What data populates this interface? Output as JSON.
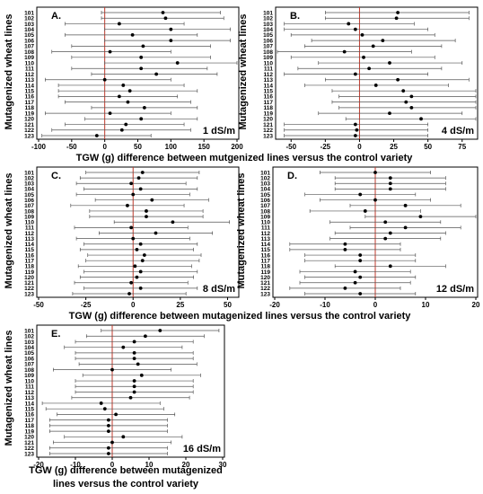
{
  "figure": {
    "y_axis_label": "Mutagenized wheat lines",
    "x_axis_label_top": "TGW (g) difference between mutgenized lines versus the control variety",
    "x_axis_label_middle": "TGW (g) difference between mutagenized lines versus the control variety",
    "x_axis_label_bottom_line1": "TGW (g) difference between mutagenized",
    "x_axis_label_bottom_line2": "lines versus the control variety"
  },
  "colors": {
    "zero_line": "#c0392b",
    "errorbar": "#555555",
    "point": "#000000",
    "frame": "#000000"
  },
  "chart_data": [
    {
      "type": "scatter",
      "panel": "A.",
      "condition": "1 dS/m",
      "categories": [
        "101",
        "102",
        "103",
        "104",
        "105",
        "106",
        "107",
        "108",
        "109",
        "110",
        "111",
        "112",
        "113",
        "114",
        "115",
        "116",
        "117",
        "118",
        "119",
        "120",
        "121",
        "122",
        "123"
      ],
      "xticks": [
        -100,
        -50,
        0,
        50,
        100,
        150,
        200
      ],
      "xlim": [
        -100,
        200
      ],
      "means": [
        88,
        92,
        22,
        100,
        42,
        100,
        58,
        8,
        55,
        110,
        55,
        78,
        0,
        28,
        38,
        22,
        35,
        60,
        8,
        55,
        32,
        26,
        -12
      ],
      "ci_low": [
        -5,
        -5,
        -60,
        0,
        -60,
        0,
        -50,
        -80,
        -50,
        0,
        -50,
        -20,
        -90,
        -70,
        -70,
        -70,
        -60,
        -20,
        -90,
        -30,
        -60,
        -80,
        -95
      ],
      "ci_high": [
        175,
        180,
        120,
        190,
        140,
        190,
        160,
        100,
        160,
        200,
        155,
        170,
        100,
        120,
        140,
        110,
        130,
        140,
        100,
        140,
        120,
        130,
        70
      ]
    },
    {
      "type": "scatter",
      "panel": "B.",
      "condition": "4 dS/m",
      "categories": [
        "101",
        "102",
        "103",
        "104",
        "105",
        "106",
        "107",
        "108",
        "109",
        "110",
        "111",
        "112",
        "113",
        "114",
        "115",
        "116",
        "117",
        "118",
        "119",
        "120",
        "121",
        "122",
        "123"
      ],
      "xticks": [
        -50,
        -25,
        0,
        25,
        50,
        75
      ],
      "xlim": [
        -60,
        85
      ],
      "means": [
        28,
        27,
        -8,
        -3,
        2,
        17,
        10,
        -11,
        3,
        22,
        7,
        -3,
        28,
        12,
        32,
        38,
        34,
        38,
        22,
        45,
        -3,
        -2,
        -3
      ],
      "ci_low": [
        -25,
        -25,
        -55,
        -55,
        -50,
        -35,
        -40,
        -60,
        -50,
        -30,
        -45,
        -55,
        -25,
        -40,
        -20,
        -15,
        -20,
        -15,
        -30,
        -10,
        -55,
        -55,
        -55
      ],
      "ci_high": [
        80,
        80,
        40,
        50,
        55,
        70,
        60,
        38,
        55,
        75,
        60,
        50,
        80,
        65,
        85,
        90,
        88,
        90,
        75,
        95,
        50,
        50,
        50
      ]
    },
    {
      "type": "scatter",
      "panel": "C.",
      "condition": "8 dS/m",
      "categories": [
        "101",
        "102",
        "103",
        "104",
        "105",
        "106",
        "107",
        "108",
        "109",
        "110",
        "111",
        "112",
        "113",
        "114",
        "115",
        "116",
        "117",
        "118",
        "119",
        "120",
        "121",
        "122",
        "123"
      ],
      "xticks": [
        -50,
        -25,
        0,
        25,
        50
      ],
      "xlim": [
        -50,
        55
      ],
      "means": [
        5,
        3,
        -1,
        4,
        0,
        10,
        -3,
        7,
        7,
        21,
        -1,
        12,
        0,
        4,
        2,
        6,
        5,
        1,
        4,
        2,
        -1,
        4,
        -2
      ],
      "ci_low": [
        -25,
        -28,
        -30,
        -26,
        -30,
        -20,
        -33,
        -23,
        -23,
        -10,
        -31,
        -18,
        -30,
        -26,
        -28,
        -24,
        -25,
        -29,
        -26,
        -28,
        -31,
        -26,
        -32
      ],
      "ci_high": [
        35,
        34,
        28,
        34,
        30,
        40,
        27,
        37,
        37,
        51,
        29,
        42,
        30,
        34,
        32,
        36,
        35,
        31,
        34,
        32,
        29,
        34,
        28
      ]
    },
    {
      "type": "scatter",
      "panel": "D.",
      "condition": "12 dS/m",
      "categories": [
        "101",
        "102",
        "103",
        "104",
        "105",
        "106",
        "107",
        "108",
        "109",
        "110",
        "111",
        "112",
        "113",
        "114",
        "115",
        "116",
        "117",
        "118",
        "119",
        "120",
        "121",
        "122",
        "123"
      ],
      "xticks": [
        -20,
        -10,
        0,
        10,
        20
      ],
      "xlim": [
        -20,
        20
      ],
      "means": [
        0,
        3,
        3,
        3,
        -3,
        0,
        6,
        -2,
        9,
        2,
        6,
        3,
        2,
        -6,
        -6,
        -3,
        -3,
        3,
        -4,
        -3,
        -4,
        -6,
        -3
      ],
      "ci_low": [
        -11,
        -8,
        -8,
        -8,
        -14,
        -11,
        -5,
        -13,
        -2,
        -9,
        -5,
        -8,
        -9,
        -17,
        -17,
        -14,
        -14,
        -8,
        -15,
        -14,
        -15,
        -17,
        -14
      ],
      "ci_high": [
        11,
        14,
        14,
        14,
        8,
        11,
        17,
        9,
        20,
        13,
        17,
        14,
        13,
        5,
        5,
        8,
        8,
        14,
        7,
        8,
        7,
        5,
        8
      ]
    },
    {
      "type": "scatter",
      "panel": "E.",
      "condition": "16 dS/m",
      "categories": [
        "101",
        "102",
        "103",
        "104",
        "105",
        "106",
        "107",
        "108",
        "109",
        "110",
        "111",
        "112",
        "113",
        "114",
        "115",
        "116",
        "117",
        "118",
        "119",
        "120",
        "121",
        "122",
        "123"
      ],
      "xticks": [
        -20,
        -10,
        0,
        10,
        20,
        30
      ],
      "xlim": [
        -20,
        30
      ],
      "means": [
        13,
        9,
        6,
        3,
        6,
        6,
        7,
        0,
        8,
        6,
        6,
        6,
        5,
        -3,
        -2,
        1,
        -1,
        -1,
        -1,
        3,
        0,
        -1,
        -1
      ],
      "ci_low": [
        -3,
        -7,
        -10,
        -13,
        -10,
        -10,
        -9,
        -16,
        -8,
        -10,
        -10,
        -10,
        -11,
        -19,
        -18,
        -15,
        -17,
        -17,
        -17,
        -13,
        -16,
        -17,
        -17
      ],
      "ci_high": [
        29,
        25,
        22,
        19,
        22,
        22,
        23,
        16,
        24,
        22,
        22,
        22,
        21,
        13,
        14,
        17,
        15,
        15,
        15,
        19,
        16,
        15,
        15
      ]
    }
  ]
}
